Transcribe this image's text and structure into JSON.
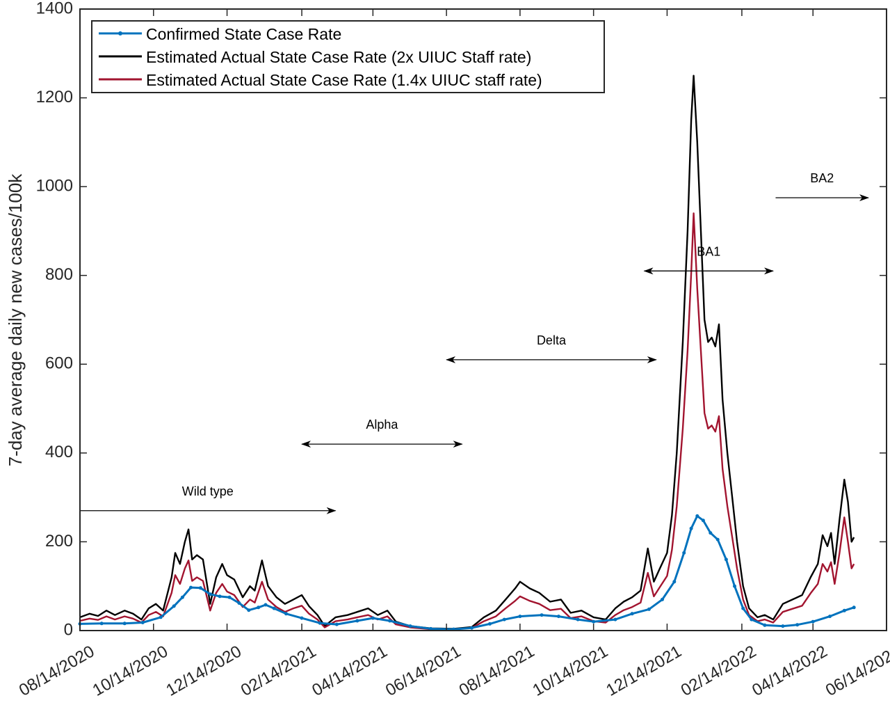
{
  "chart_data": {
    "type": "line",
    "title": "",
    "xlabel": "",
    "ylabel": "7-day average daily new cases/100k",
    "xlim": [
      "2020-08-14",
      "2022-06-14"
    ],
    "ylim": [
      0,
      1400
    ],
    "y_ticks": [
      0,
      200,
      400,
      600,
      800,
      1000,
      1200,
      1400
    ],
    "x_ticks": [
      "08/14/2020",
      "10/14/2020",
      "12/14/2020",
      "02/14/2021",
      "04/14/2021",
      "06/14/2021",
      "08/14/2021",
      "10/14/2021",
      "12/14/2021",
      "02/14/2022",
      "04/14/2022",
      "06/14/2022"
    ],
    "grid": false,
    "legend_position": "top-left",
    "series": [
      {
        "name": "Confirmed State Case Rate",
        "color": "#0072BD",
        "marker": "dot",
        "points": [
          [
            "2020-08-14",
            15
          ],
          [
            "2020-09-01",
            16
          ],
          [
            "2020-09-20",
            16
          ],
          [
            "2020-10-05",
            18
          ],
          [
            "2020-10-20",
            30
          ],
          [
            "2020-10-31",
            55
          ],
          [
            "2020-11-07",
            75
          ],
          [
            "2020-11-14",
            97
          ],
          [
            "2020-11-22",
            96
          ],
          [
            "2020-11-30",
            82
          ],
          [
            "2020-12-08",
            77
          ],
          [
            "2020-12-16",
            75
          ],
          [
            "2020-12-24",
            62
          ],
          [
            "2021-01-01",
            46
          ],
          [
            "2021-01-09",
            52
          ],
          [
            "2021-01-15",
            58
          ],
          [
            "2021-01-22",
            50
          ],
          [
            "2021-02-01",
            38
          ],
          [
            "2021-02-14",
            28
          ],
          [
            "2021-03-01",
            17
          ],
          [
            "2021-03-15",
            14
          ],
          [
            "2021-04-01",
            22
          ],
          [
            "2021-04-14",
            28
          ],
          [
            "2021-04-28",
            22
          ],
          [
            "2021-05-15",
            10
          ],
          [
            "2021-06-01",
            4
          ],
          [
            "2021-06-20",
            3
          ],
          [
            "2021-07-05",
            6
          ],
          [
            "2021-07-20",
            15
          ],
          [
            "2021-08-01",
            25
          ],
          [
            "2021-08-14",
            32
          ],
          [
            "2021-09-01",
            35
          ],
          [
            "2021-09-15",
            32
          ],
          [
            "2021-10-01",
            25
          ],
          [
            "2021-10-14",
            20
          ],
          [
            "2021-11-01",
            25
          ],
          [
            "2021-11-15",
            38
          ],
          [
            "2021-11-29",
            48
          ],
          [
            "2021-12-10",
            70
          ],
          [
            "2021-12-20",
            110
          ],
          [
            "2021-12-28",
            175
          ],
          [
            "2022-01-03",
            230
          ],
          [
            "2022-01-08",
            258
          ],
          [
            "2022-01-13",
            248
          ],
          [
            "2022-01-19",
            220
          ],
          [
            "2022-01-25",
            205
          ],
          [
            "2022-02-01",
            160
          ],
          [
            "2022-02-08",
            100
          ],
          [
            "2022-02-15",
            50
          ],
          [
            "2022-02-22",
            25
          ],
          [
            "2022-03-05",
            12
          ],
          [
            "2022-03-20",
            10
          ],
          [
            "2022-04-01",
            13
          ],
          [
            "2022-04-14",
            20
          ],
          [
            "2022-04-28",
            32
          ],
          [
            "2022-05-10",
            45
          ],
          [
            "2022-05-18",
            52
          ]
        ]
      },
      {
        "name": "Estimated Actual State Case Rate (2x UIUC Staff rate)",
        "color": "#000000",
        "marker": "none",
        "points": [
          [
            "2020-08-14",
            30
          ],
          [
            "2020-08-22",
            38
          ],
          [
            "2020-08-29",
            33
          ],
          [
            "2020-09-05",
            45
          ],
          [
            "2020-09-12",
            35
          ],
          [
            "2020-09-20",
            45
          ],
          [
            "2020-09-27",
            38
          ],
          [
            "2020-10-04",
            25
          ],
          [
            "2020-10-10",
            50
          ],
          [
            "2020-10-16",
            60
          ],
          [
            "2020-10-22",
            45
          ],
          [
            "2020-10-29",
            120
          ],
          [
            "2020-11-01",
            175
          ],
          [
            "2020-11-05",
            150
          ],
          [
            "2020-11-09",
            200
          ],
          [
            "2020-11-12",
            228
          ],
          [
            "2020-11-15",
            160
          ],
          [
            "2020-11-19",
            170
          ],
          [
            "2020-11-24",
            160
          ],
          [
            "2020-11-30",
            60
          ],
          [
            "2020-12-05",
            120
          ],
          [
            "2020-12-10",
            150
          ],
          [
            "2020-12-14",
            125
          ],
          [
            "2020-12-20",
            115
          ],
          [
            "2020-12-27",
            75
          ],
          [
            "2021-01-02",
            100
          ],
          [
            "2021-01-06",
            90
          ],
          [
            "2021-01-12",
            158
          ],
          [
            "2021-01-17",
            100
          ],
          [
            "2021-01-24",
            75
          ],
          [
            "2021-01-31",
            60
          ],
          [
            "2021-02-07",
            70
          ],
          [
            "2021-02-14",
            80
          ],
          [
            "2021-02-20",
            55
          ],
          [
            "2021-02-27",
            35
          ],
          [
            "2021-03-05",
            10
          ],
          [
            "2021-03-14",
            30
          ],
          [
            "2021-03-24",
            35
          ],
          [
            "2021-04-01",
            42
          ],
          [
            "2021-04-10",
            50
          ],
          [
            "2021-04-18",
            35
          ],
          [
            "2021-04-26",
            45
          ],
          [
            "2021-05-03",
            20
          ],
          [
            "2021-05-15",
            10
          ],
          [
            "2021-06-01",
            5
          ],
          [
            "2021-06-20",
            4
          ],
          [
            "2021-07-05",
            8
          ],
          [
            "2021-07-15",
            30
          ],
          [
            "2021-07-25",
            45
          ],
          [
            "2021-08-02",
            70
          ],
          [
            "2021-08-10",
            95
          ],
          [
            "2021-08-14",
            110
          ],
          [
            "2021-08-22",
            95
          ],
          [
            "2021-08-30",
            85
          ],
          [
            "2021-09-08",
            65
          ],
          [
            "2021-09-17",
            70
          ],
          [
            "2021-09-25",
            40
          ],
          [
            "2021-10-04",
            45
          ],
          [
            "2021-10-14",
            30
          ],
          [
            "2021-10-24",
            25
          ],
          [
            "2021-11-01",
            50
          ],
          [
            "2021-11-08",
            65
          ],
          [
            "2021-11-15",
            75
          ],
          [
            "2021-11-22",
            90
          ],
          [
            "2021-11-28",
            185
          ],
          [
            "2021-12-03",
            110
          ],
          [
            "2021-12-08",
            140
          ],
          [
            "2021-12-14",
            175
          ],
          [
            "2021-12-18",
            260
          ],
          [
            "2021-12-22",
            400
          ],
          [
            "2021-12-27",
            650
          ],
          [
            "2021-12-31",
            900
          ],
          [
            "2022-01-03",
            1150
          ],
          [
            "2022-01-05",
            1250
          ],
          [
            "2022-01-08",
            1100
          ],
          [
            "2022-01-11",
            900
          ],
          [
            "2022-01-14",
            700
          ],
          [
            "2022-01-17",
            650
          ],
          [
            "2022-01-20",
            660
          ],
          [
            "2022-01-23",
            640
          ],
          [
            "2022-01-26",
            690
          ],
          [
            "2022-01-29",
            520
          ],
          [
            "2022-02-02",
            400
          ],
          [
            "2022-02-06",
            300
          ],
          [
            "2022-02-10",
            200
          ],
          [
            "2022-02-15",
            100
          ],
          [
            "2022-02-20",
            50
          ],
          [
            "2022-02-27",
            30
          ],
          [
            "2022-03-05",
            35
          ],
          [
            "2022-03-12",
            25
          ],
          [
            "2022-03-20",
            60
          ],
          [
            "2022-03-28",
            70
          ],
          [
            "2022-04-05",
            80
          ],
          [
            "2022-04-12",
            120
          ],
          [
            "2022-04-18",
            150
          ],
          [
            "2022-04-22",
            215
          ],
          [
            "2022-04-26",
            190
          ],
          [
            "2022-04-29",
            220
          ],
          [
            "2022-05-02",
            150
          ],
          [
            "2022-05-06",
            250
          ],
          [
            "2022-05-10",
            340
          ],
          [
            "2022-05-13",
            290
          ],
          [
            "2022-05-16",
            200
          ],
          [
            "2022-05-18",
            210
          ]
        ]
      },
      {
        "name": "Estimated Actual State Case Rate (1.4x UIUC staff rate)",
        "color": "#A2142F",
        "marker": "none",
        "points": [
          [
            "2020-08-14",
            22
          ],
          [
            "2020-08-22",
            27
          ],
          [
            "2020-08-29",
            24
          ],
          [
            "2020-09-05",
            32
          ],
          [
            "2020-09-12",
            25
          ],
          [
            "2020-09-20",
            32
          ],
          [
            "2020-09-27",
            27
          ],
          [
            "2020-10-04",
            18
          ],
          [
            "2020-10-10",
            35
          ],
          [
            "2020-10-16",
            42
          ],
          [
            "2020-10-22",
            32
          ],
          [
            "2020-10-29",
            85
          ],
          [
            "2020-11-01",
            125
          ],
          [
            "2020-11-05",
            105
          ],
          [
            "2020-11-09",
            140
          ],
          [
            "2020-11-12",
            158
          ],
          [
            "2020-11-15",
            112
          ],
          [
            "2020-11-19",
            120
          ],
          [
            "2020-11-24",
            112
          ],
          [
            "2020-11-30",
            45
          ],
          [
            "2020-12-05",
            85
          ],
          [
            "2020-12-10",
            105
          ],
          [
            "2020-12-14",
            88
          ],
          [
            "2020-12-20",
            80
          ],
          [
            "2020-12-27",
            53
          ],
          [
            "2021-01-02",
            70
          ],
          [
            "2021-01-06",
            63
          ],
          [
            "2021-01-12",
            110
          ],
          [
            "2021-01-17",
            70
          ],
          [
            "2021-01-24",
            53
          ],
          [
            "2021-01-31",
            42
          ],
          [
            "2021-02-07",
            50
          ],
          [
            "2021-02-14",
            56
          ],
          [
            "2021-02-20",
            38
          ],
          [
            "2021-02-27",
            25
          ],
          [
            "2021-03-05",
            7
          ],
          [
            "2021-03-14",
            21
          ],
          [
            "2021-03-24",
            25
          ],
          [
            "2021-04-01",
            30
          ],
          [
            "2021-04-10",
            35
          ],
          [
            "2021-04-18",
            25
          ],
          [
            "2021-04-26",
            32
          ],
          [
            "2021-05-03",
            14
          ],
          [
            "2021-05-15",
            7
          ],
          [
            "2021-06-01",
            3
          ],
          [
            "2021-06-20",
            3
          ],
          [
            "2021-07-05",
            6
          ],
          [
            "2021-07-15",
            21
          ],
          [
            "2021-07-25",
            32
          ],
          [
            "2021-08-02",
            50
          ],
          [
            "2021-08-10",
            67
          ],
          [
            "2021-08-14",
            77
          ],
          [
            "2021-08-22",
            67
          ],
          [
            "2021-08-30",
            60
          ],
          [
            "2021-09-08",
            46
          ],
          [
            "2021-09-17",
            49
          ],
          [
            "2021-09-25",
            28
          ],
          [
            "2021-10-04",
            32
          ],
          [
            "2021-10-14",
            21
          ],
          [
            "2021-10-24",
            18
          ],
          [
            "2021-11-01",
            35
          ],
          [
            "2021-11-08",
            46
          ],
          [
            "2021-11-15",
            53
          ],
          [
            "2021-11-22",
            63
          ],
          [
            "2021-11-28",
            130
          ],
          [
            "2021-12-03",
            77
          ],
          [
            "2021-12-08",
            98
          ],
          [
            "2021-12-14",
            123
          ],
          [
            "2021-12-18",
            182
          ],
          [
            "2021-12-22",
            280
          ],
          [
            "2021-12-27",
            455
          ],
          [
            "2021-12-31",
            630
          ],
          [
            "2022-01-03",
            805
          ],
          [
            "2022-01-05",
            940
          ],
          [
            "2022-01-08",
            770
          ],
          [
            "2022-01-11",
            630
          ],
          [
            "2022-01-14",
            490
          ],
          [
            "2022-01-17",
            455
          ],
          [
            "2022-01-20",
            462
          ],
          [
            "2022-01-23",
            448
          ],
          [
            "2022-01-26",
            483
          ],
          [
            "2022-01-29",
            364
          ],
          [
            "2022-02-02",
            280
          ],
          [
            "2022-02-06",
            210
          ],
          [
            "2022-02-10",
            140
          ],
          [
            "2022-02-15",
            70
          ],
          [
            "2022-02-20",
            35
          ],
          [
            "2022-02-27",
            21
          ],
          [
            "2022-03-05",
            25
          ],
          [
            "2022-03-12",
            18
          ],
          [
            "2022-03-20",
            42
          ],
          [
            "2022-03-28",
            49
          ],
          [
            "2022-04-05",
            56
          ],
          [
            "2022-04-12",
            84
          ],
          [
            "2022-04-18",
            105
          ],
          [
            "2022-04-22",
            150
          ],
          [
            "2022-04-26",
            133
          ],
          [
            "2022-04-29",
            154
          ],
          [
            "2022-05-02",
            105
          ],
          [
            "2022-05-06",
            175
          ],
          [
            "2022-05-10",
            255
          ],
          [
            "2022-05-13",
            200
          ],
          [
            "2022-05-16",
            140
          ],
          [
            "2022-05-18",
            150
          ]
        ]
      }
    ],
    "annotations": [
      {
        "label": "Wild type",
        "start": "2020-08-14",
        "end": "2021-03-14",
        "y": 270,
        "arrows": "end"
      },
      {
        "label": "Alpha",
        "start": "2021-02-14",
        "end": "2021-06-27",
        "y": 420,
        "arrows": "both"
      },
      {
        "label": "Delta",
        "start": "2021-06-14",
        "end": "2021-12-05",
        "y": 610,
        "arrows": "both"
      },
      {
        "label": "BA1",
        "start": "2021-11-25",
        "end": "2022-03-12",
        "y": 810,
        "arrows": "both"
      },
      {
        "label": "BA2",
        "start": "2022-03-14",
        "end": "2022-05-30",
        "y": 975,
        "arrows": "end"
      }
    ]
  }
}
